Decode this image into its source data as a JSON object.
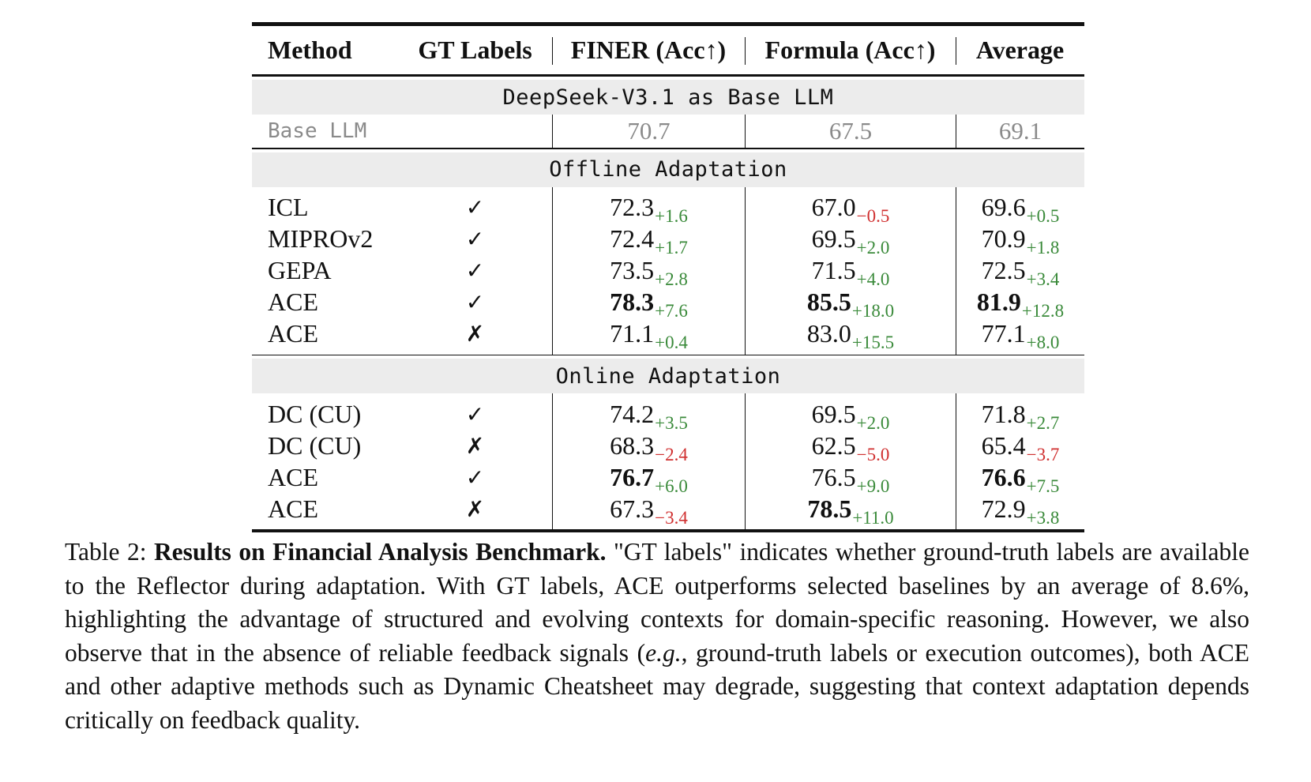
{
  "table": {
    "headers": [
      "Method",
      "GT Labels",
      "FINER (Acc↑)",
      "Formula (Acc↑)",
      "Average"
    ],
    "section_base": "DeepSeek-V3.1 as Base LLM",
    "base_row": {
      "method": "Base LLM",
      "finer": "70.7",
      "formula": "67.5",
      "average": "69.1"
    },
    "section_offline": "Offline Adaptation",
    "offline_rows": [
      {
        "method": "ICL",
        "gt": "✓",
        "finer": {
          "v": "72.3",
          "d": "+1.6",
          "s": "pos",
          "b": false
        },
        "formula": {
          "v": "67.0",
          "d": "−0.5",
          "s": "neg",
          "b": false
        },
        "average": {
          "v": "69.6",
          "d": "+0.5",
          "s": "pos",
          "b": false
        }
      },
      {
        "method": "MIPROv2",
        "gt": "✓",
        "finer": {
          "v": "72.4",
          "d": "+1.7",
          "s": "pos",
          "b": false
        },
        "formula": {
          "v": "69.5",
          "d": "+2.0",
          "s": "pos",
          "b": false
        },
        "average": {
          "v": "70.9",
          "d": "+1.8",
          "s": "pos",
          "b": false
        }
      },
      {
        "method": "GEPA",
        "gt": "✓",
        "finer": {
          "v": "73.5",
          "d": "+2.8",
          "s": "pos",
          "b": false
        },
        "formula": {
          "v": "71.5",
          "d": "+4.0",
          "s": "pos",
          "b": false
        },
        "average": {
          "v": "72.5",
          "d": "+3.4",
          "s": "pos",
          "b": false
        }
      },
      {
        "method": "ACE",
        "gt": "✓",
        "finer": {
          "v": "78.3",
          "d": "+7.6",
          "s": "pos",
          "b": true
        },
        "formula": {
          "v": "85.5",
          "d": "+18.0",
          "s": "pos",
          "b": true
        },
        "average": {
          "v": "81.9",
          "d": "+12.8",
          "s": "pos",
          "b": true
        }
      },
      {
        "method": "ACE",
        "gt": "✗",
        "finer": {
          "v": "71.1",
          "d": "+0.4",
          "s": "pos",
          "b": false
        },
        "formula": {
          "v": "83.0",
          "d": "+15.5",
          "s": "pos",
          "b": false
        },
        "average": {
          "v": "77.1",
          "d": "+8.0",
          "s": "pos",
          "b": false
        }
      }
    ],
    "section_online": "Online Adaptation",
    "online_rows": [
      {
        "method": "DC (CU)",
        "gt": "✓",
        "finer": {
          "v": "74.2",
          "d": "+3.5",
          "s": "pos",
          "b": false
        },
        "formula": {
          "v": "69.5",
          "d": "+2.0",
          "s": "pos",
          "b": false
        },
        "average": {
          "v": "71.8",
          "d": "+2.7",
          "s": "pos",
          "b": false
        }
      },
      {
        "method": "DC (CU)",
        "gt": "✗",
        "finer": {
          "v": "68.3",
          "d": "−2.4",
          "s": "neg",
          "b": false
        },
        "formula": {
          "v": "62.5",
          "d": "−5.0",
          "s": "neg",
          "b": false
        },
        "average": {
          "v": "65.4",
          "d": "−3.7",
          "s": "neg",
          "b": false
        }
      },
      {
        "method": "ACE",
        "gt": "✓",
        "finer": {
          "v": "76.7",
          "d": "+6.0",
          "s": "pos",
          "b": true
        },
        "formula": {
          "v": "76.5",
          "d": "+9.0",
          "s": "pos",
          "b": false
        },
        "average": {
          "v": "76.6",
          "d": "+7.5",
          "s": "pos",
          "b": true
        }
      },
      {
        "method": "ACE",
        "gt": "✗",
        "finer": {
          "v": "67.3",
          "d": "−3.4",
          "s": "neg",
          "b": false
        },
        "formula": {
          "v": "78.5",
          "d": "+11.0",
          "s": "pos",
          "b": true
        },
        "average": {
          "v": "72.9",
          "d": "+3.8",
          "s": "pos",
          "b": false
        }
      }
    ]
  },
  "caption": {
    "label": "Table 2:",
    "title": "Results on Financial Analysis Benchmark.",
    "body_1": "\"GT labels\" indicates whether ground-truth labels are available to the Reflector during adaptation. With GT labels, ACE outperforms selected baselines by an average of 8.6%, highlighting the advantage of structured and evolving contexts for domain-specific reasoning. However, we also observe that in the absence of reliable feedback signals (",
    "italic": "e.g.",
    "body_2": ", ground-truth labels or execution outcomes), both ACE and other adaptive methods such as Dynamic Cheatsheet may degrade, suggesting that context adaptation depends critically on feedback quality."
  },
  "colors": {
    "positive": "#3a8a3a",
    "negative": "#d03030",
    "band": "#ececec",
    "muted": "#8a8a8a"
  }
}
